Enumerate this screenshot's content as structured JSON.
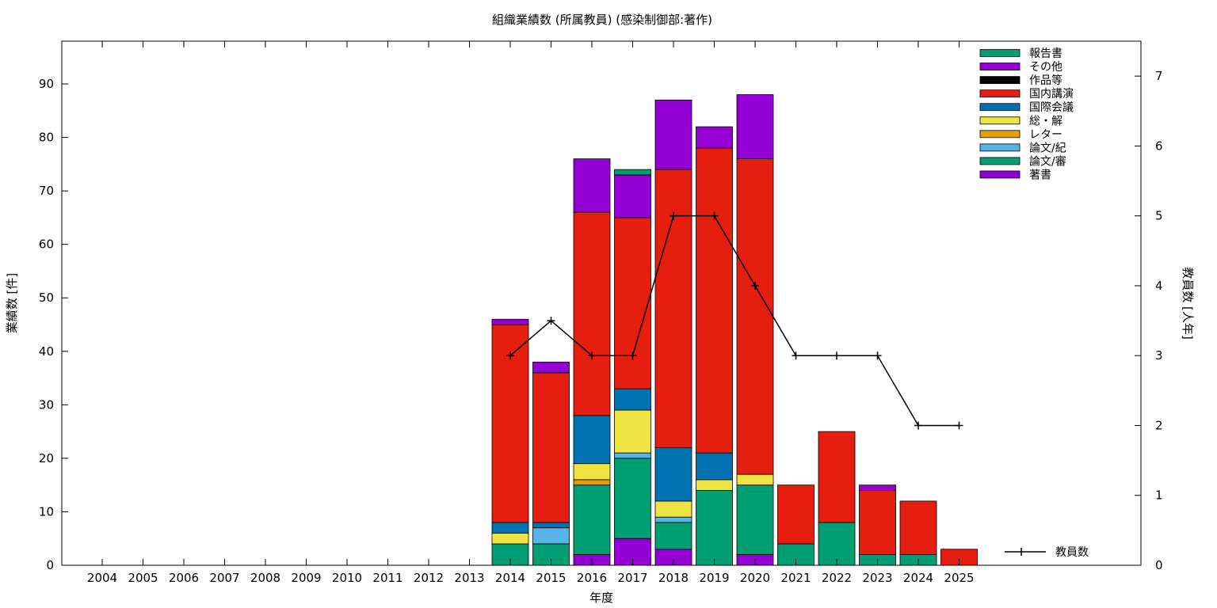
{
  "chart_data": {
    "type": "bar",
    "stacked": true,
    "title": "組織業績数 (所属教員) (感染制御部:著作)",
    "xlabel": "年度",
    "ylabel": "業績数 [件]",
    "y2label": "教員数 [人年]",
    "ylim": [
      0,
      98
    ],
    "y2lim": [
      0,
      7.5
    ],
    "yticks": [
      0,
      10,
      20,
      30,
      40,
      50,
      60,
      70,
      80,
      90
    ],
    "y2ticks": [
      0,
      1,
      2,
      3,
      4,
      5,
      6,
      7
    ],
    "legend_position": "top-right",
    "grid": false,
    "categories": [
      "2004",
      "2005",
      "2006",
      "2007",
      "2008",
      "2009",
      "2010",
      "2011",
      "2012",
      "2013",
      "2014",
      "2015",
      "2016",
      "2017",
      "2018",
      "2019",
      "2020",
      "2021",
      "2022",
      "2023",
      "2024",
      "2025"
    ],
    "series": [
      {
        "name": "著書",
        "color": "#9400d3",
        "values": [
          0,
          0,
          0,
          0,
          0,
          0,
          0,
          0,
          0,
          0,
          0,
          0,
          2,
          5,
          3,
          0,
          2,
          0,
          0,
          0,
          0,
          0
        ]
      },
      {
        "name": "論文/審",
        "color": "#009e73",
        "values": [
          0,
          0,
          0,
          0,
          0,
          0,
          0,
          0,
          0,
          0,
          4,
          4,
          13,
          15,
          5,
          14,
          13,
          4,
          8,
          2,
          2,
          0
        ]
      },
      {
        "name": "論文/紀",
        "color": "#56b4e9",
        "values": [
          0,
          0,
          0,
          0,
          0,
          0,
          0,
          0,
          0,
          0,
          0,
          3,
          0,
          1,
          1,
          0,
          0,
          0,
          0,
          0,
          0,
          0
        ]
      },
      {
        "name": "レター",
        "color": "#e69f00",
        "values": [
          0,
          0,
          0,
          0,
          0,
          0,
          0,
          0,
          0,
          0,
          0,
          0,
          1,
          0,
          0,
          0,
          0,
          0,
          0,
          0,
          0,
          0
        ]
      },
      {
        "name": "総・解",
        "color": "#f0e442",
        "values": [
          0,
          0,
          0,
          0,
          0,
          0,
          0,
          0,
          0,
          0,
          2,
          0,
          3,
          8,
          3,
          2,
          2,
          0,
          0,
          0,
          0,
          0
        ]
      },
      {
        "name": "国際会議",
        "color": "#0072b2",
        "values": [
          0,
          0,
          0,
          0,
          0,
          0,
          0,
          0,
          0,
          0,
          2,
          1,
          9,
          4,
          10,
          5,
          0,
          0,
          0,
          0,
          0,
          0
        ]
      },
      {
        "name": "国内講演",
        "color": "#e51e10",
        "values": [
          0,
          0,
          0,
          0,
          0,
          0,
          0,
          0,
          0,
          0,
          37,
          28,
          38,
          32,
          52,
          57,
          59,
          11,
          17,
          12,
          10,
          3
        ]
      },
      {
        "name": "作品等",
        "color": "#000000",
        "values": [
          0,
          0,
          0,
          0,
          0,
          0,
          0,
          0,
          0,
          0,
          0,
          0,
          0,
          0,
          0,
          0,
          0,
          0,
          0,
          0,
          0,
          0
        ]
      },
      {
        "name": "その他",
        "color": "#9400d3",
        "values": [
          0,
          0,
          0,
          0,
          0,
          0,
          0,
          0,
          0,
          0,
          1,
          2,
          10,
          8,
          13,
          4,
          12,
          0,
          0,
          1,
          0,
          0
        ]
      },
      {
        "name": "報告書",
        "color": "#009e73",
        "values": [
          0,
          0,
          0,
          0,
          0,
          0,
          0,
          0,
          0,
          0,
          0,
          0,
          0,
          1,
          0,
          0,
          0,
          0,
          0,
          0,
          0,
          0
        ]
      }
    ],
    "line": {
      "name": "教員数",
      "axis": "right",
      "color": "#000000",
      "x": [
        "2014",
        "2015",
        "2016",
        "2017",
        "2018",
        "2019",
        "2020",
        "2021",
        "2022",
        "2023",
        "2024",
        "2025"
      ],
      "values": [
        3,
        3.5,
        3,
        3,
        5,
        5,
        4,
        3,
        3,
        3,
        2,
        2
      ]
    }
  }
}
